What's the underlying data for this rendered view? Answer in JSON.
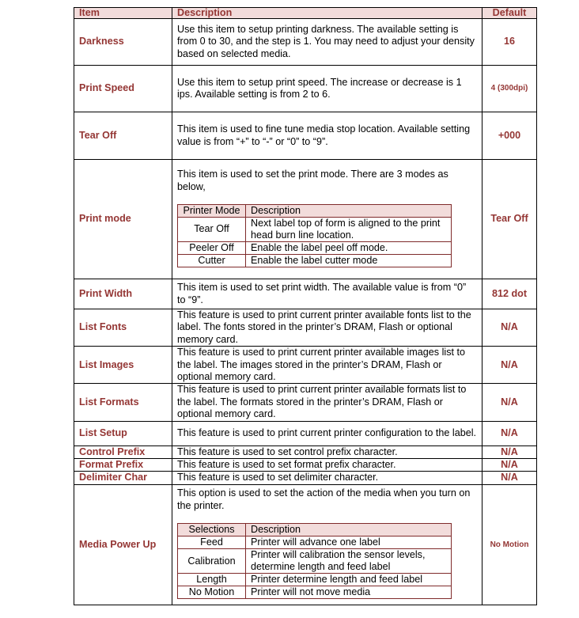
{
  "headers": {
    "item": "Item",
    "description": "Description",
    "default": "Default"
  },
  "rows": [
    {
      "item": "Darkness",
      "description": "Use this item to setup printing darkness. The available setting is from 0 to 30, and the step is 1. You may need to adjust your density based on selected media.",
      "default": "16"
    },
    {
      "item": "Print Speed",
      "description": "Use this item to setup print speed. The increase or decrease is 1 ips. Available setting is from 2 to 6.",
      "default": "4 (300dpi)"
    },
    {
      "item": "Tear Off",
      "description": "This item is used to fine tune media stop location. Available setting value is from “+” to “-” or “0” to “9”.",
      "default": "+000"
    },
    {
      "item": "Print mode",
      "description": "This item is used to set the print mode. There are 3 modes as below,",
      "default": "Tear Off",
      "sub": {
        "headers": [
          "Printer Mode",
          "Description"
        ],
        "rows": [
          [
            "Tear Off",
            "Next label top of form is aligned to the print head burn line location."
          ],
          [
            "Peeler Off",
            "Enable the label peel off mode."
          ],
          [
            "Cutter",
            "Enable the label cutter mode"
          ]
        ]
      }
    },
    {
      "item": "Print Width",
      "description": "This item is used to set print width. The available value is from “0” to “9”.",
      "default": "812 dot"
    },
    {
      "item": "List Fonts",
      "description": "This feature is used to print current printer available fonts list to the label. The fonts stored in the printer’s DRAM, Flash or optional memory card.",
      "default": "N/A"
    },
    {
      "item": "List Images",
      "description": "This feature is used to print current printer available images list to the label. The images stored in the printer’s DRAM, Flash or optional memory card.",
      "default": "N/A"
    },
    {
      "item": "List Formats",
      "description": "This feature is used to print current printer available formats list to the label. The formats stored in the printer’s DRAM, Flash or optional memory card.",
      "default": "N/A"
    },
    {
      "item": "List Setup",
      "description": "This feature is used to print current printer configuration to the label.",
      "default": "N/A"
    },
    {
      "item": "Control Prefix",
      "description": "This feature is used to set control prefix character.",
      "default": "N/A"
    },
    {
      "item": "Format Prefix",
      "description": "This feature is used to set format prefix character.",
      "default": "N/A"
    },
    {
      "item": "Delimiter Char",
      "description": "This feature is used to set delimiter character.",
      "default": "N/A"
    },
    {
      "item": "Media Power Up",
      "description": "This option is used to set the action of the media when you turn on the printer.",
      "default": "No Motion",
      "sub": {
        "headers": [
          "Selections",
          "Description"
        ],
        "rows": [
          [
            "Feed",
            "Printer will advance one label"
          ],
          [
            "Calibration",
            "Printer will calibration the sensor levels, determine length and feed label"
          ],
          [
            "Length",
            "Printer determine length and feed label"
          ],
          [
            "No Motion",
            "Printer will not move media"
          ]
        ]
      }
    }
  ],
  "colors": {
    "accent": "#943634",
    "header_bg": "#f2dcdb"
  }
}
